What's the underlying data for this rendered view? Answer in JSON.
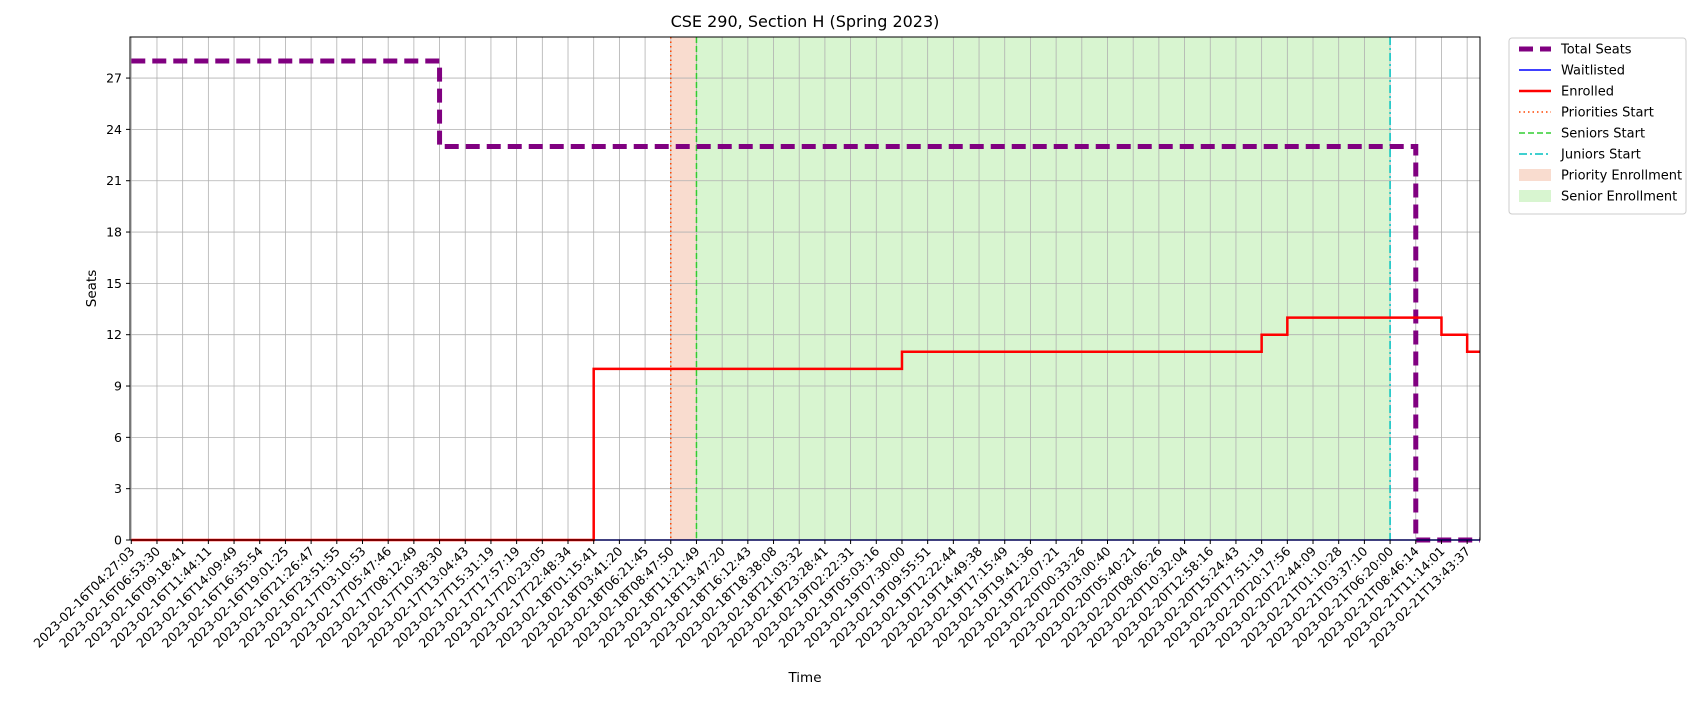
{
  "chart_data": {
    "type": "line",
    "title": "CSE 290, Section H (Spring 2023)",
    "xlabel": "Time",
    "ylabel": "Seats",
    "ylim": [
      0,
      29.4
    ],
    "yticks": [
      0,
      3,
      6,
      9,
      12,
      15,
      18,
      21,
      24,
      27
    ],
    "grid": true,
    "legend_position": "outside-top-right",
    "x_tick_labels": [
      "2023-02-16T04:27:03",
      "2023-02-16T06:53:30",
      "2023-02-16T09:18:41",
      "2023-02-16T11:44:11",
      "2023-02-16T14:09:49",
      "2023-02-16T16:35:54",
      "2023-02-16T19:01:25",
      "2023-02-16T21:26:47",
      "2023-02-16T23:51:55",
      "2023-02-17T03:10:53",
      "2023-02-17T05:47:46",
      "2023-02-17T08:12:49",
      "2023-02-17T10:38:30",
      "2023-02-17T13:04:43",
      "2023-02-17T15:31:19",
      "2023-02-17T17:57:19",
      "2023-02-17T20:23:05",
      "2023-02-17T22:48:34",
      "2023-02-18T01:15:41",
      "2023-02-18T03:41:20",
      "2023-02-18T06:21:45",
      "2023-02-18T08:47:50",
      "2023-02-18T11:21:49",
      "2023-02-18T13:47:20",
      "2023-02-18T16:12:43",
      "2023-02-18T18:38:08",
      "2023-02-18T21:03:32",
      "2023-02-18T23:28:41",
      "2023-02-19T02:22:31",
      "2023-02-19T05:03:16",
      "2023-02-19T07:30:00",
      "2023-02-19T09:55:51",
      "2023-02-19T12:22:44",
      "2023-02-19T14:49:38",
      "2023-02-19T17:15:49",
      "2023-02-19T19:41:36",
      "2023-02-19T22:07:21",
      "2023-02-20T00:33:26",
      "2023-02-20T03:00:40",
      "2023-02-20T05:40:21",
      "2023-02-20T08:06:26",
      "2023-02-20T10:32:04",
      "2023-02-20T12:58:16",
      "2023-02-20T15:24:43",
      "2023-02-20T17:51:19",
      "2023-02-20T20:17:56",
      "2023-02-20T22:44:09",
      "2023-02-21T01:10:28",
      "2023-02-21T03:37:10",
      "2023-02-21T06:20:00",
      "2023-02-21T08:46:14",
      "2023-02-21T11:14:01",
      "2023-02-21T13:43:37"
    ],
    "series": [
      {
        "name": "Total Seats",
        "color": "#800080",
        "style": "dashed",
        "points": [
          {
            "x": "2023-02-16T04:27:03",
            "y": 28
          },
          {
            "x": "2023-02-17T10:38:30",
            "y": 28
          },
          {
            "x": "2023-02-17T10:38:30",
            "y": 23
          },
          {
            "x": "2023-02-21T08:46:14",
            "y": 23
          },
          {
            "x": "2023-02-21T08:46:14",
            "y": 0
          },
          {
            "x": "2023-02-21T13:43:37",
            "y": 0
          }
        ]
      },
      {
        "name": "Waitlisted",
        "color": "#0000ff",
        "style": "solid",
        "points": [
          {
            "x": "2023-02-16T04:27:03",
            "y": 0
          },
          {
            "x": "2023-02-21T13:43:37",
            "y": 0
          }
        ]
      },
      {
        "name": "Enrolled",
        "color": "#ff0000",
        "style": "solid",
        "points": [
          {
            "x": "2023-02-16T04:27:03",
            "y": 0
          },
          {
            "x": "2023-02-18T01:15:41",
            "y": 0
          },
          {
            "x": "2023-02-18T01:15:41",
            "y": 10
          },
          {
            "x": "2023-02-19T07:30:00",
            "y": 10
          },
          {
            "x": "2023-02-19T07:30:00",
            "y": 11
          },
          {
            "x": "2023-02-20T17:51:19",
            "y": 11
          },
          {
            "x": "2023-02-20T17:51:19",
            "y": 12
          },
          {
            "x": "2023-02-20T20:17:56",
            "y": 12
          },
          {
            "x": "2023-02-20T20:17:56",
            "y": 13
          },
          {
            "x": "2023-02-21T11:14:01",
            "y": 13
          },
          {
            "x": "2023-02-21T11:14:01",
            "y": 12
          },
          {
            "x": "2023-02-21T13:43:37",
            "y": 12
          },
          {
            "x": "2023-02-21T13:43:37",
            "y": 11
          }
        ]
      }
    ],
    "vertical_lines": [
      {
        "name": "Priorities Start",
        "x": "2023-02-18T08:47:50",
        "color": "#ff4500",
        "style": "dotted"
      },
      {
        "name": "Seniors Start",
        "x": "2023-02-18T11:21:49",
        "color": "#32cd32",
        "style": "dashed"
      },
      {
        "name": "Juniors Start",
        "x": "2023-02-21T06:20:00",
        "color": "#00c0c0",
        "style": "dashdot"
      }
    ],
    "spans": [
      {
        "name": "Priority Enrollment",
        "from": "2023-02-18T08:47:50",
        "to": "2023-02-18T11:21:49",
        "color": "#f4c0a8"
      },
      {
        "name": "Senior Enrollment",
        "from": "2023-02-18T11:21:49",
        "to": "2023-02-21T06:20:00",
        "color": "#b8ecaa"
      }
    ]
  }
}
